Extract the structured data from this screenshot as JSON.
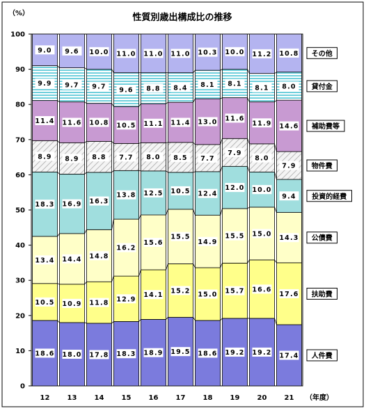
{
  "chart_data": {
    "type": "bar",
    "stacked": true,
    "title": "性質別歳出構成比の推移",
    "ylabel": "（%）",
    "xlabel": "（年度）",
    "ylim": [
      0,
      100
    ],
    "yticks": [
      "0",
      "10",
      "20",
      "30",
      "40",
      "50",
      "60",
      "70",
      "80",
      "90",
      "100"
    ],
    "categories": [
      "12",
      "13",
      "14",
      "15",
      "16",
      "17",
      "18",
      "19",
      "20",
      "21"
    ],
    "legend_placement": "right",
    "series": [
      {
        "name": "人件費",
        "color": "#7b7bdd",
        "pattern": "solid",
        "values": [
          18.6,
          18.0,
          17.8,
          18.3,
          18.9,
          19.5,
          18.6,
          19.2,
          19.2,
          17.4
        ],
        "labels": [
          "18.6",
          "18.0",
          "17.8",
          "18.3",
          "18.9",
          "19.5",
          "18.6",
          "19.2",
          "19.2",
          "17.4"
        ]
      },
      {
        "name": "扶助費",
        "color": "#ffff8a",
        "pattern": "solid",
        "values": [
          10.5,
          10.9,
          11.8,
          12.9,
          14.1,
          15.2,
          15.0,
          15.7,
          16.6,
          17.6
        ],
        "labels": [
          "10.5",
          "10.9",
          "11.8",
          "12.9",
          "14.1",
          "15.2",
          "15.0",
          "15.7",
          "16.6",
          "17.6"
        ]
      },
      {
        "name": "公債費",
        "color": "#ffffc8",
        "pattern": "solid",
        "values": [
          13.4,
          14.4,
          14.8,
          16.2,
          15.6,
          15.5,
          14.9,
          15.5,
          15.0,
          14.3
        ],
        "labels": [
          "13.4",
          "14.4",
          "14.8",
          "16.2",
          "15.6",
          "15.5",
          "14.9",
          "15.5",
          "15.0",
          "14.3"
        ]
      },
      {
        "name": "投資的経費",
        "color": "#a0dede",
        "pattern": "solid",
        "values": [
          18.3,
          16.9,
          16.3,
          13.8,
          12.5,
          10.5,
          12.4,
          12.0,
          10.0,
          9.4
        ],
        "labels": [
          "18.3",
          "16.9",
          "16.3",
          "13.8",
          "12.5",
          "10.5",
          "12.4",
          "12.0",
          "10.0",
          "9.4"
        ]
      },
      {
        "name": "物件費",
        "color": "#e6e6e6",
        "pattern": "hatch",
        "values": [
          8.9,
          8.9,
          8.8,
          7.7,
          8.0,
          8.5,
          7.7,
          7.9,
          8.0,
          7.9
        ],
        "labels": [
          "8.9",
          "8.9",
          "8.8",
          "7.7",
          "8.0",
          "8.5",
          "7.7",
          "7.9",
          "8.0",
          "7.9"
        ]
      },
      {
        "name": "補助費等",
        "color": "#c89ad2",
        "pattern": "solid",
        "values": [
          11.4,
          11.6,
          10.8,
          10.5,
          11.1,
          11.4,
          13.0,
          11.6,
          11.9,
          14.6
        ],
        "labels": [
          "11.4",
          "11.6",
          "10.8",
          "10.5",
          "11.1",
          "11.4",
          "13.0",
          "11.6",
          "11.9",
          "14.6"
        ]
      },
      {
        "name": "貸付金",
        "color": "#7fd4e0",
        "pattern": "stripes",
        "values": [
          9.9,
          9.7,
          9.7,
          9.6,
          8.8,
          8.4,
          8.1,
          8.1,
          8.1,
          8.0
        ],
        "labels": [
          "9.9",
          "9.7",
          "9.7",
          "9.6",
          "8.8",
          "8.4",
          "8.1",
          "8.1",
          "8.1",
          "8.0"
        ]
      },
      {
        "name": "その他",
        "color": "#b4b4f0",
        "pattern": "solid",
        "values": [
          9.0,
          9.6,
          10.0,
          11.0,
          11.0,
          11.0,
          10.3,
          10.0,
          11.2,
          10.8
        ],
        "labels": [
          "9.0",
          "9.6",
          "10.0",
          "11.0",
          "11.0",
          "11.0",
          "10.3",
          "10.0",
          "11.2",
          "10.8"
        ]
      }
    ]
  }
}
